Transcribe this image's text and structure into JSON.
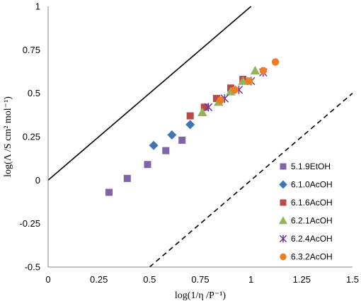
{
  "chart_data": {
    "type": "scatter",
    "title": "",
    "xlabel": "log(1/η /P⁻¹)",
    "ylabel": "log(Λ /S cm² mol⁻¹)",
    "xlim": [
      0,
      1.5
    ],
    "ylim": [
      -0.5,
      1
    ],
    "x_ticks": [
      "0",
      "0.25",
      "0.5",
      "0.75",
      "1",
      "1.25",
      "1.5"
    ],
    "y_ticks": [
      "-0.5",
      "-0.25",
      "0",
      "0.25",
      "0.5",
      "0.75",
      "1"
    ],
    "grid": false,
    "legend_position": "right",
    "reference_lines": [
      {
        "style": "solid",
        "x": [
          0,
          1.0
        ],
        "y": [
          0,
          1.0
        ]
      },
      {
        "style": "dashed",
        "x": [
          0.5,
          1.5
        ],
        "y": [
          -0.5,
          0.5
        ]
      }
    ],
    "series": [
      {
        "name": "5.1.9EtOH",
        "marker": "square",
        "color": "#7F65A8",
        "x": [
          0.3,
          0.39,
          0.49,
          0.58,
          0.66
        ],
        "y": [
          -0.07,
          0.01,
          0.09,
          0.17,
          0.23
        ]
      },
      {
        "name": "6.1.0AcOH",
        "marker": "diamond",
        "color": "#3F74B5",
        "x": [
          0.52,
          0.61,
          0.7
        ],
        "y": [
          0.2,
          0.26,
          0.32
        ]
      },
      {
        "name": "6.1.6AcOH",
        "marker": "square",
        "color": "#B94A48",
        "x": [
          0.7,
          0.77,
          0.83,
          0.9,
          0.96
        ],
        "y": [
          0.37,
          0.42,
          0.47,
          0.53,
          0.58
        ]
      },
      {
        "name": "6.2.1AcOH",
        "marker": "triangle",
        "color": "#93B35A",
        "x": [
          0.76,
          0.84,
          0.9,
          0.96,
          1.02
        ],
        "y": [
          0.39,
          0.45,
          0.51,
          0.57,
          0.63
        ]
      },
      {
        "name": "6.2.4AcOH",
        "marker": "star",
        "color": "#7035A0",
        "x": [
          0.79,
          0.87,
          0.94,
          1.0,
          1.06
        ],
        "y": [
          0.42,
          0.47,
          0.52,
          0.57,
          0.62
        ]
      },
      {
        "name": "6.3.2AcOH",
        "marker": "circle",
        "color": "#F07C24",
        "x": [
          0.85,
          0.92,
          0.99,
          1.06,
          1.12
        ],
        "y": [
          0.46,
          0.52,
          0.57,
          0.63,
          0.68
        ]
      }
    ]
  }
}
